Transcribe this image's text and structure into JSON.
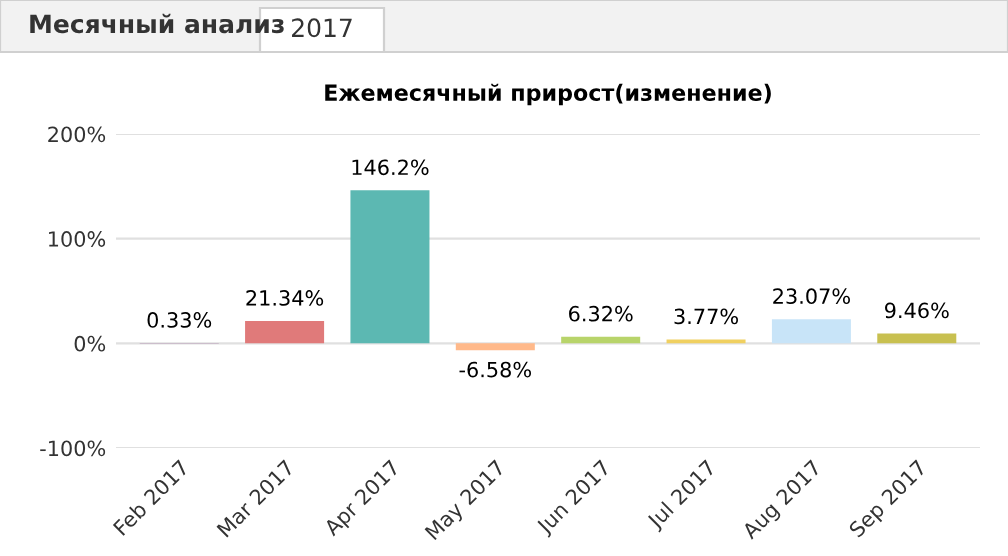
{
  "chart_data": {
    "type": "bar",
    "title": "Ежемесячный прирост(изменение)",
    "annotations": [
      "Месячный анализ",
      "2017"
    ],
    "categories": [
      "Feb 2017",
      "Mar 2017",
      "Apr 2017",
      "May 2017",
      "Jun 2017",
      "Jul 2017",
      "Aug 2017",
      "Sep 2017"
    ],
    "values": [
      0.33,
      21.34,
      146.2,
      -6.58,
      6.32,
      3.77,
      23.07,
      9.46
    ],
    "value_labels": [
      "0.33%",
      "21.34%",
      "146.2%",
      "-6.58%",
      "6.32%",
      "3.77%",
      "23.07%",
      "9.46%"
    ],
    "colors": [
      "#8e5a8e",
      "#e07a7a",
      "#5cb8b2",
      "#ffb98a",
      "#b8d46a",
      "#f0d060",
      "#c8e4f8",
      "#c8c050"
    ],
    "ylim": [
      -100,
      200
    ],
    "yticks": [
      {
        "value": -100,
        "label": "-100%"
      },
      {
        "value": 0,
        "label": "0%"
      },
      {
        "value": 100,
        "label": "100%"
      },
      {
        "value": 200,
        "label": "200%"
      }
    ],
    "grid": "y",
    "legend": false
  }
}
